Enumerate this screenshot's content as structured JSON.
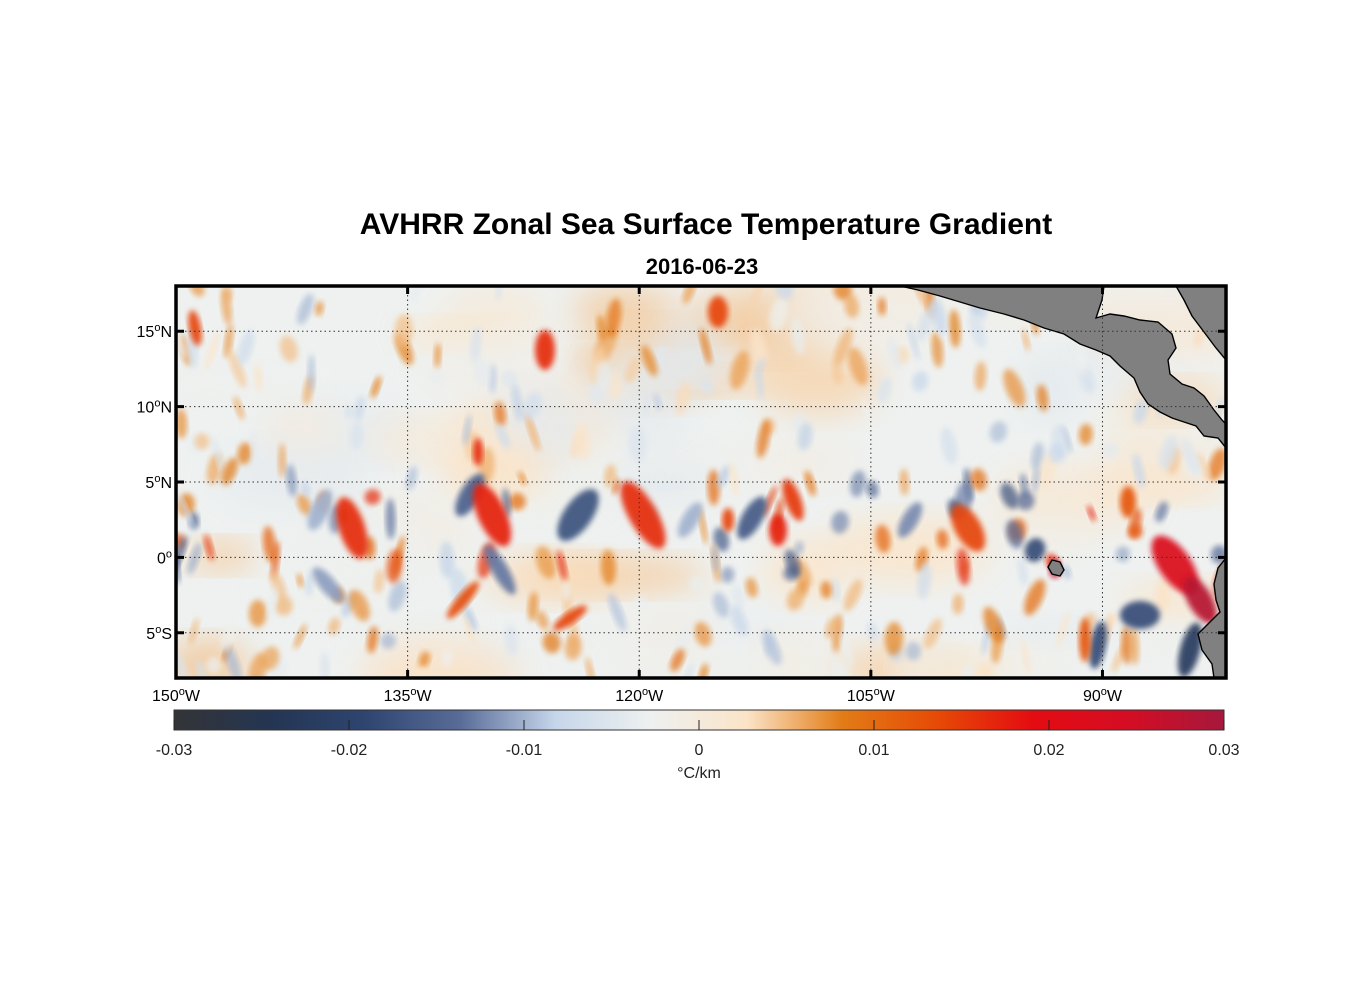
{
  "title": "AVHRR Zonal Sea Surface Temperature Gradient",
  "subtitle": "2016-06-23",
  "map": {
    "lon_range": [
      -150,
      -82
    ],
    "lat_range": [
      -8,
      18
    ],
    "lat_ticks": [
      {
        "value": 15,
        "label": "15",
        "suffix": "N"
      },
      {
        "value": 10,
        "label": "10",
        "suffix": "N"
      },
      {
        "value": 5,
        "label": "5",
        "suffix": "N"
      },
      {
        "value": 0,
        "label": "0",
        "suffix": ""
      },
      {
        "value": -5,
        "label": "5",
        "suffix": "S"
      }
    ],
    "lon_ticks": [
      {
        "value": -150,
        "label": "150",
        "suffix": "W"
      },
      {
        "value": -135,
        "label": "135",
        "suffix": "W"
      },
      {
        "value": -120,
        "label": "120",
        "suffix": "W"
      },
      {
        "value": -105,
        "label": "105",
        "suffix": "W"
      },
      {
        "value": -90,
        "label": "90",
        "suffix": "W"
      }
    ],
    "grid": "dotted",
    "land_color": "#808080"
  },
  "colorbar": {
    "label": "°C/km",
    "min": -0.03,
    "max": 0.03,
    "ticks": [
      "-0.03",
      "-0.02",
      "-0.01",
      "0",
      "0.01",
      "0.02",
      "0.03"
    ],
    "colors": [
      "#333436",
      "#243552",
      "#2e4570",
      "#596c98",
      "#c6d6ea",
      "#eef1f0",
      "#fbe4c8",
      "#e27c16",
      "#e64a06",
      "#e40c12",
      "#d40d24",
      "#a6183c"
    ]
  }
}
